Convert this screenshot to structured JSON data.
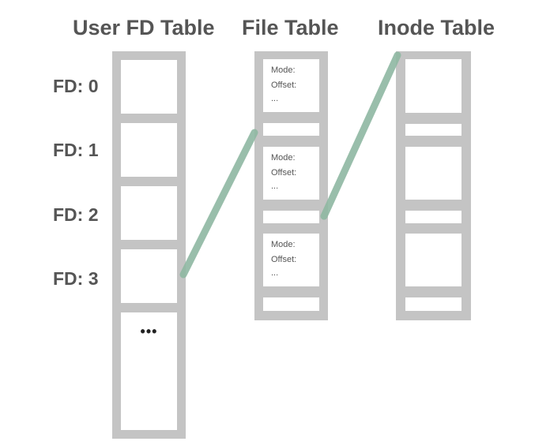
{
  "titles": {
    "user_fd_table": "User FD Table",
    "file_table": "File Table",
    "inode_table": "Inode Table"
  },
  "fd_labels": [
    "FD: 0",
    "FD: 1",
    "FD: 2",
    "FD: 3"
  ],
  "user_fd_more": "•••",
  "file_entries": [
    {
      "mode": "Mode:",
      "offset": "Offset:",
      "more": "..."
    },
    {
      "mode": "Mode:",
      "offset": "Offset:",
      "more": "..."
    },
    {
      "mode": "Mode:",
      "offset": "Offset:",
      "more": "..."
    }
  ],
  "colors": {
    "column_gray": "#c4c4c4",
    "text_gray": "#555555",
    "link_green": "#8fb8a2"
  }
}
